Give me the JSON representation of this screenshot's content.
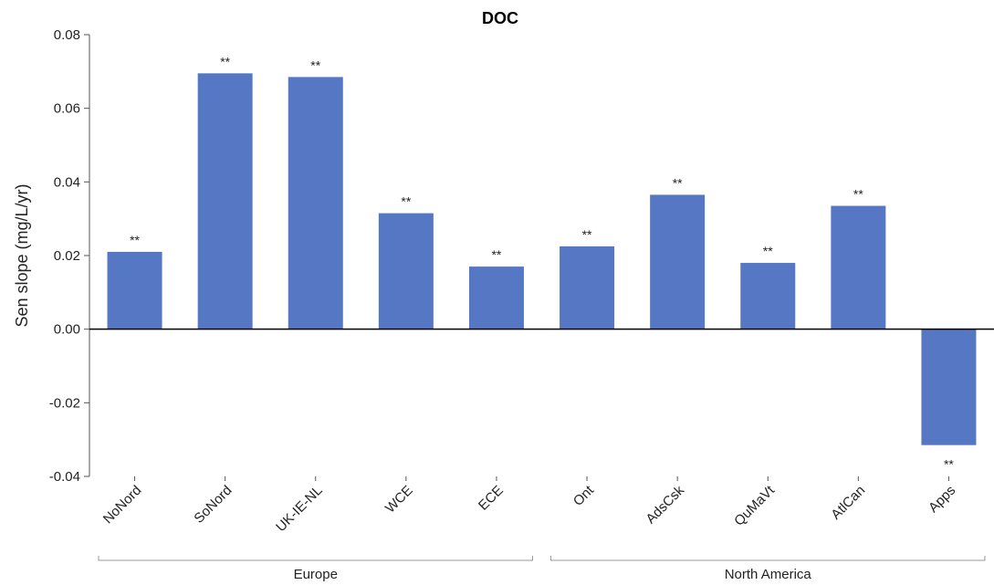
{
  "chart_data": {
    "type": "bar",
    "title": "DOC",
    "xlabel": "",
    "ylabel": "Sen slope (mg/L/yr)",
    "ylim": [
      -0.04,
      0.08
    ],
    "yticks": [
      "0.08",
      "0.06",
      "0.04",
      "0.02",
      "0.00",
      "-0.02",
      "-0.04"
    ],
    "ytick_values": [
      0.08,
      0.06,
      0.04,
      0.02,
      0.0,
      -0.02,
      -0.04
    ],
    "categories": [
      "NoNord",
      "SoNord",
      "UK-IE-NL",
      "WCE",
      "ECE",
      "Ont",
      "AdsCsk",
      "QuMaVt",
      "AtlCan",
      "Apps"
    ],
    "values": [
      0.021,
      0.0695,
      0.0685,
      0.0315,
      0.017,
      0.0225,
      0.0365,
      0.018,
      0.0335,
      -0.0315
    ],
    "significance": [
      "**",
      "**",
      "**",
      "**",
      "**",
      "**",
      "**",
      "**",
      "**",
      "**"
    ],
    "groups": [
      {
        "label": "Europe",
        "start": 0,
        "end": 4
      },
      {
        "label": "North America",
        "start": 5,
        "end": 9
      }
    ],
    "bar_color": "#5677c4",
    "grid": false,
    "legend": "none"
  }
}
